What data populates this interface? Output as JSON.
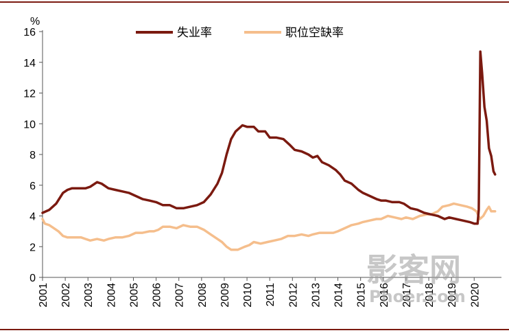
{
  "chart_data": {
    "type": "line",
    "ylabel": "%",
    "ylim": [
      0,
      16
    ],
    "yticks": [
      "0",
      "2",
      "4",
      "6",
      "8",
      "10",
      "12",
      "14",
      "16"
    ],
    "xlim": [
      2001,
      2021.2
    ],
    "xticks": [
      "2001",
      "2002",
      "2003",
      "2004",
      "2005",
      "2006",
      "2007",
      "2008",
      "2009",
      "2010",
      "2011",
      "2012",
      "2013",
      "2014",
      "2015",
      "2016",
      "2017",
      "2018",
      "2019",
      "2020"
    ],
    "legend_position": "top-center",
    "grid": false,
    "series": [
      {
        "name": "失业率",
        "color": "#7b1a10",
        "points": [
          [
            2001.0,
            4.2
          ],
          [
            2001.3,
            4.4
          ],
          [
            2001.6,
            4.8
          ],
          [
            2001.9,
            5.5
          ],
          [
            2002.1,
            5.7
          ],
          [
            2002.3,
            5.8
          ],
          [
            2002.6,
            5.8
          ],
          [
            2002.9,
            5.8
          ],
          [
            2003.1,
            5.9
          ],
          [
            2003.4,
            6.2
          ],
          [
            2003.6,
            6.1
          ],
          [
            2003.9,
            5.8
          ],
          [
            2004.2,
            5.7
          ],
          [
            2004.5,
            5.6
          ],
          [
            2004.8,
            5.5
          ],
          [
            2005.1,
            5.3
          ],
          [
            2005.4,
            5.1
          ],
          [
            2005.7,
            5.0
          ],
          [
            2006.0,
            4.9
          ],
          [
            2006.3,
            4.7
          ],
          [
            2006.6,
            4.7
          ],
          [
            2006.9,
            4.5
          ],
          [
            2007.2,
            4.5
          ],
          [
            2007.5,
            4.6
          ],
          [
            2007.8,
            4.7
          ],
          [
            2008.1,
            4.9
          ],
          [
            2008.4,
            5.4
          ],
          [
            2008.7,
            6.1
          ],
          [
            2008.9,
            6.8
          ],
          [
            2009.1,
            8.0
          ],
          [
            2009.3,
            9.0
          ],
          [
            2009.5,
            9.5
          ],
          [
            2009.8,
            9.9
          ],
          [
            2010.0,
            9.8
          ],
          [
            2010.3,
            9.8
          ],
          [
            2010.5,
            9.5
          ],
          [
            2010.8,
            9.5
          ],
          [
            2011.0,
            9.1
          ],
          [
            2011.3,
            9.1
          ],
          [
            2011.6,
            9.0
          ],
          [
            2011.9,
            8.6
          ],
          [
            2012.1,
            8.3
          ],
          [
            2012.4,
            8.2
          ],
          [
            2012.7,
            8.0
          ],
          [
            2012.9,
            7.8
          ],
          [
            2013.1,
            7.9
          ],
          [
            2013.3,
            7.5
          ],
          [
            2013.6,
            7.3
          ],
          [
            2013.9,
            7.0
          ],
          [
            2014.1,
            6.7
          ],
          [
            2014.3,
            6.3
          ],
          [
            2014.6,
            6.1
          ],
          [
            2014.9,
            5.7
          ],
          [
            2015.1,
            5.5
          ],
          [
            2015.4,
            5.3
          ],
          [
            2015.7,
            5.1
          ],
          [
            2015.9,
            5.0
          ],
          [
            2016.1,
            5.0
          ],
          [
            2016.4,
            4.9
          ],
          [
            2016.7,
            4.9
          ],
          [
            2016.9,
            4.8
          ],
          [
            2017.2,
            4.5
          ],
          [
            2017.5,
            4.4
          ],
          [
            2017.8,
            4.2
          ],
          [
            2018.1,
            4.1
          ],
          [
            2018.4,
            4.0
          ],
          [
            2018.7,
            3.8
          ],
          [
            2018.9,
            3.9
          ],
          [
            2019.2,
            3.8
          ],
          [
            2019.5,
            3.7
          ],
          [
            2019.8,
            3.6
          ],
          [
            2020.0,
            3.5
          ],
          [
            2020.15,
            3.5
          ],
          [
            2020.2,
            4.4
          ],
          [
            2020.27,
            14.7
          ],
          [
            2020.35,
            13.3
          ],
          [
            2020.45,
            11.1
          ],
          [
            2020.55,
            10.2
          ],
          [
            2020.65,
            8.4
          ],
          [
            2020.75,
            7.9
          ],
          [
            2020.85,
            6.9
          ],
          [
            2020.92,
            6.7
          ]
        ]
      },
      {
        "name": "职位空缺率",
        "color": "#f5be8c",
        "points": [
          [
            2001.0,
            3.8
          ],
          [
            2001.1,
            3.5
          ],
          [
            2001.3,
            3.4
          ],
          [
            2001.5,
            3.2
          ],
          [
            2001.7,
            3.0
          ],
          [
            2001.9,
            2.7
          ],
          [
            2002.1,
            2.6
          ],
          [
            2002.4,
            2.6
          ],
          [
            2002.7,
            2.6
          ],
          [
            2002.9,
            2.5
          ],
          [
            2003.1,
            2.4
          ],
          [
            2003.4,
            2.5
          ],
          [
            2003.7,
            2.4
          ],
          [
            2003.9,
            2.5
          ],
          [
            2004.2,
            2.6
          ],
          [
            2004.5,
            2.6
          ],
          [
            2004.8,
            2.7
          ],
          [
            2005.1,
            2.9
          ],
          [
            2005.4,
            2.9
          ],
          [
            2005.7,
            3.0
          ],
          [
            2005.9,
            3.0
          ],
          [
            2006.1,
            3.1
          ],
          [
            2006.3,
            3.3
          ],
          [
            2006.6,
            3.3
          ],
          [
            2006.9,
            3.2
          ],
          [
            2007.2,
            3.4
          ],
          [
            2007.5,
            3.3
          ],
          [
            2007.8,
            3.3
          ],
          [
            2008.1,
            3.1
          ],
          [
            2008.4,
            2.8
          ],
          [
            2008.7,
            2.5
          ],
          [
            2008.9,
            2.3
          ],
          [
            2009.1,
            2.0
          ],
          [
            2009.3,
            1.8
          ],
          [
            2009.6,
            1.8
          ],
          [
            2009.9,
            2.0
          ],
          [
            2010.1,
            2.1
          ],
          [
            2010.3,
            2.3
          ],
          [
            2010.6,
            2.2
          ],
          [
            2010.9,
            2.3
          ],
          [
            2011.2,
            2.4
          ],
          [
            2011.5,
            2.5
          ],
          [
            2011.8,
            2.7
          ],
          [
            2012.1,
            2.7
          ],
          [
            2012.4,
            2.8
          ],
          [
            2012.7,
            2.7
          ],
          [
            2012.9,
            2.8
          ],
          [
            2013.2,
            2.9
          ],
          [
            2013.5,
            2.9
          ],
          [
            2013.8,
            2.9
          ],
          [
            2014.0,
            3.0
          ],
          [
            2014.3,
            3.2
          ],
          [
            2014.6,
            3.4
          ],
          [
            2014.9,
            3.5
          ],
          [
            2015.1,
            3.6
          ],
          [
            2015.4,
            3.7
          ],
          [
            2015.7,
            3.8
          ],
          [
            2015.9,
            3.8
          ],
          [
            2016.2,
            4.0
          ],
          [
            2016.5,
            3.9
          ],
          [
            2016.8,
            3.8
          ],
          [
            2017.0,
            3.9
          ],
          [
            2017.3,
            3.8
          ],
          [
            2017.6,
            4.0
          ],
          [
            2017.9,
            4.1
          ],
          [
            2018.1,
            4.1
          ],
          [
            2018.4,
            4.3
          ],
          [
            2018.6,
            4.6
          ],
          [
            2018.9,
            4.7
          ],
          [
            2019.1,
            4.8
          ],
          [
            2019.4,
            4.7
          ],
          [
            2019.7,
            4.6
          ],
          [
            2019.9,
            4.5
          ],
          [
            2020.1,
            4.3
          ],
          [
            2020.25,
            3.8
          ],
          [
            2020.4,
            4.0
          ],
          [
            2020.55,
            4.4
          ],
          [
            2020.65,
            4.6
          ],
          [
            2020.75,
            4.3
          ],
          [
            2020.92,
            4.3
          ]
        ]
      }
    ]
  },
  "watermark": {
    "main": "影客网",
    "sub": "Phoer.com"
  }
}
